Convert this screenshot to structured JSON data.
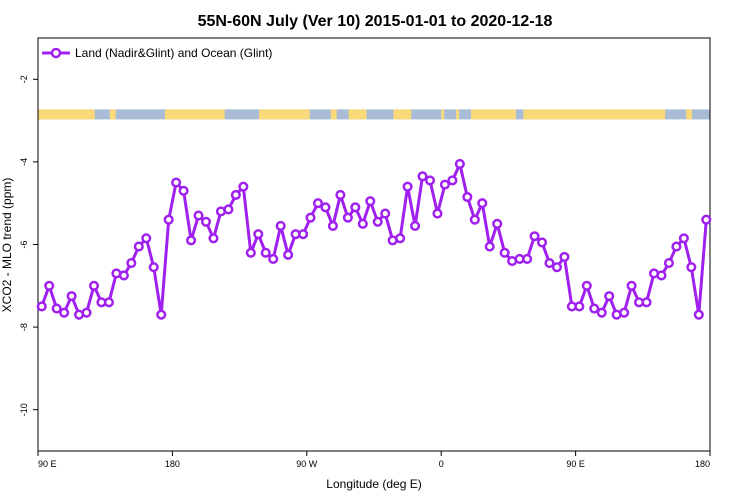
{
  "chart_data": {
    "type": "line",
    "title": "55N-60N July (Ver 10)   2015-01-01 to 2020-12-18",
    "xlabel": "Longitude (deg E)",
    "ylabel": "XCO2 - MLO trend (ppm)",
    "x_ticks": [
      {
        "value": 90,
        "label": "90 E"
      },
      {
        "value": 180,
        "label": "180"
      },
      {
        "value": 270,
        "label": "90 W"
      },
      {
        "value": 360,
        "label": "0"
      },
      {
        "value": 450,
        "label": "90 E"
      },
      {
        "value": 540,
        "label": "180"
      }
    ],
    "y_ticks": [
      {
        "value": -2,
        "label": "-2"
      },
      {
        "value": -4,
        "label": "-4"
      },
      {
        "value": -6,
        "label": "-6"
      },
      {
        "value": -8,
        "label": "-8"
      },
      {
        "value": -10,
        "label": "-10"
      }
    ],
    "xlim": [
      90,
      540
    ],
    "ylim": [
      -11,
      -1
    ],
    "grid": false,
    "legend_position": "top-left",
    "land_band_y": -2.85,
    "series": [
      {
        "name": "Land (Nadir&Glint) and Ocean (Glint)",
        "color": "#a020f0",
        "marker": "open-circle",
        "x": [
          92.5,
          97.5,
          102.5,
          107.5,
          112.5,
          117.5,
          122.5,
          127.5,
          132.5,
          137.5,
          142.5,
          147.5,
          152.5,
          157.5,
          162.5,
          167.5,
          172.5,
          177.5,
          182.5,
          187.5,
          192.5,
          197.5,
          202.5,
          207.5,
          212.5,
          217.5,
          222.5,
          227.5,
          232.5,
          237.5,
          242.5,
          247.5,
          252.5,
          257.5,
          262.5,
          267.5,
          272.5,
          277.5,
          282.5,
          287.5,
          292.5,
          297.5,
          302.5,
          307.5,
          312.5,
          317.5,
          322.5,
          327.5,
          332.5,
          337.5,
          342.5,
          347.5,
          352.5,
          357.5,
          362.5,
          367.5,
          372.5,
          377.5,
          382.5,
          387.5,
          392.5,
          397.5,
          402.5,
          407.5,
          412.5,
          417.5,
          422.5,
          427.5,
          432.5,
          437.5,
          442.5,
          447.5,
          452.5,
          457.5,
          462.5,
          467.5,
          472.5,
          477.5,
          482.5,
          487.5,
          492.5,
          497.5,
          502.5,
          507.5,
          512.5,
          517.5,
          522.5,
          527.5,
          532.5,
          537.5
        ],
        "y": [
          -7.5,
          -7.0,
          -7.55,
          -7.65,
          -7.25,
          -7.7,
          -7.65,
          -7.0,
          -7.4,
          -7.4,
          -6.7,
          -6.75,
          -6.45,
          -6.05,
          -5.85,
          -6.55,
          -7.7,
          -5.4,
          -4.5,
          -4.7,
          -5.9,
          -5.3,
          -5.45,
          -5.85,
          -5.2,
          -5.15,
          -4.8,
          -4.6,
          -6.2,
          -5.75,
          -6.2,
          -6.35,
          -5.55,
          -6.25,
          -5.75,
          -5.75,
          -5.35,
          -5.0,
          -5.1,
          -5.55,
          -4.8,
          -5.35,
          -5.1,
          -5.5,
          -4.95,
          -5.45,
          -5.25,
          -5.9,
          -5.85,
          -4.6,
          -5.55,
          -4.35,
          -4.45,
          -5.25,
          -4.55,
          -4.45,
          -4.05,
          -4.85,
          -5.4,
          -5.0,
          -6.05,
          -5.5,
          -6.2,
          -6.4,
          -6.35,
          -6.35,
          -5.8,
          -5.95,
          -6.45,
          -6.55,
          -6.3,
          -7.5,
          -7.5,
          -7.0,
          -7.55,
          -7.65,
          -7.25,
          -7.7,
          -7.65,
          -7.0,
          -7.4,
          -7.4,
          -6.7,
          -6.75,
          -6.45,
          -6.05,
          -5.85,
          -6.55,
          -7.7,
          -5.4
        ]
      }
    ]
  },
  "land_band": {
    "ocean_color": "#a8bcd8",
    "land_color": "#f9d97a",
    "land_segments": [
      [
        90,
        128
      ],
      [
        138,
        142
      ],
      [
        175,
        215
      ],
      [
        238,
        272
      ],
      [
        286,
        290
      ],
      [
        298,
        310
      ],
      [
        328,
        340
      ],
      [
        360,
        362
      ],
      [
        370,
        372
      ],
      [
        380,
        410
      ],
      [
        415,
        510
      ],
      [
        524,
        528
      ]
    ]
  }
}
